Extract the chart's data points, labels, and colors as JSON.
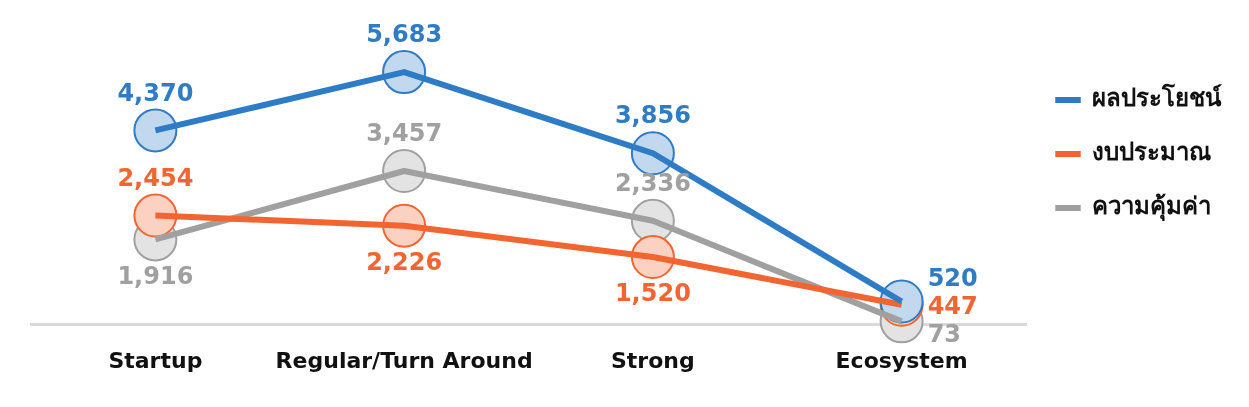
{
  "chart_data": {
    "type": "line",
    "categories": [
      "Startup",
      "Regular/Turn Around",
      "Strong",
      "Ecosystem"
    ],
    "series": [
      {
        "name": "ผลประโยชน์",
        "color": "#2f7cc6",
        "values": [
          4370,
          5683,
          3856,
          520
        ],
        "value_labels": [
          "4,370",
          "5,683",
          "3,856",
          "520"
        ]
      },
      {
        "name": "งบประมาณ",
        "color": "#f26530",
        "values": [
          2454,
          2226,
          1520,
          447
        ],
        "value_labels": [
          "2,454",
          "2,226",
          "1,520",
          "447"
        ]
      },
      {
        "name": "ความคุ้มค่า",
        "color": "#a0a0a0",
        "values": [
          1916,
          3457,
          2336,
          73
        ],
        "value_labels": [
          "1,916",
          "3,457",
          "2,336",
          "73"
        ]
      }
    ],
    "legend": "top right",
    "grid": false,
    "marker": "circle",
    "line_style": "solid",
    "tick_labels": "x"
  }
}
